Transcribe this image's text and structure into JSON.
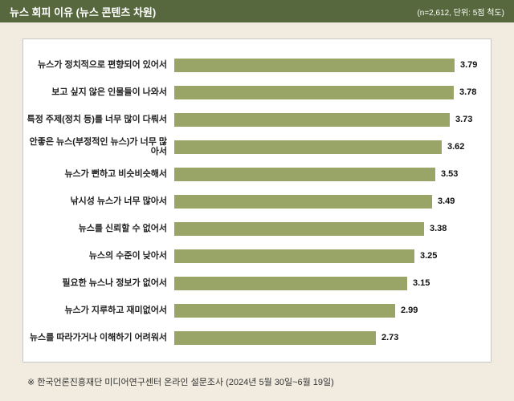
{
  "header": {
    "title": "뉴스 회피 이유 (뉴스 콘텐츠 차원)",
    "note": "(n=2,612, 단위: 5점 척도)"
  },
  "footer": {
    "source": "※ 한국언론진흥재단 미디어연구센터 온라인 설문조사 (2024년 5월 30일~6월 19일)"
  },
  "colors": {
    "header_bg": "#57683e",
    "header_text": "#ffffff",
    "bar": "#98a566",
    "page_bg": "#f1ecdf",
    "panel_bg": "#ffffff",
    "panel_border": "#c9c9c4"
  },
  "chart_data": {
    "type": "bar",
    "orientation": "horizontal",
    "title": "뉴스 회피 이유 (뉴스 콘텐츠 차원)",
    "xlabel": "",
    "ylabel": "",
    "xlim": [
      0,
      5
    ],
    "grid": false,
    "legend": "none",
    "value_decimals": 2,
    "categories": [
      "뉴스가 정치적으로 편향되어 있어서",
      "보고 싶지 않은 인물들이 나와서",
      "특정 주제(정치 등)를 너무 많이 다뤄서",
      "안좋은 뉴스(부정적인 뉴스)가 너무 많아서",
      "뉴스가 뻔하고 비슷비슷해서",
      "낚시성 뉴스가 너무 많아서",
      "뉴스를 신뢰할 수 없어서",
      "뉴스의 수준이 낮아서",
      "필요한 뉴스나 정보가 없어서",
      "뉴스가 지루하고 재미없어서",
      "뉴스를 따라가거나 이해하기 어려워서"
    ],
    "values": [
      3.79,
      3.78,
      3.73,
      3.62,
      3.53,
      3.49,
      3.38,
      3.25,
      3.15,
      2.99,
      2.73
    ]
  }
}
